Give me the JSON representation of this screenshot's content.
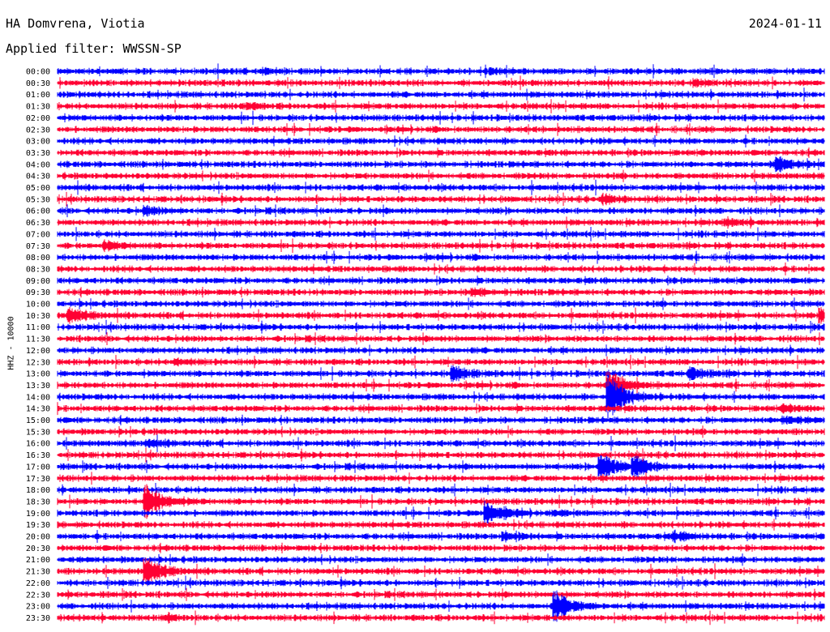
{
  "header": {
    "station": "HA Domvrena, Viotia",
    "date": "2024-01-11",
    "filter": "Applied filter: WWSSN-SP"
  },
  "chart_data": {
    "type": "line",
    "title": "HA Domvrena, Viotia",
    "ylabel": "HHZ - 10000",
    "trace_colors": [
      "#0000ff",
      "#ff0033"
    ],
    "row_labels": [
      "00:00",
      "00:30",
      "01:00",
      "01:30",
      "02:00",
      "02:30",
      "03:00",
      "03:30",
      "04:00",
      "04:30",
      "05:00",
      "05:30",
      "06:00",
      "06:30",
      "07:00",
      "07:30",
      "08:00",
      "08:30",
      "09:00",
      "09:30",
      "10:00",
      "10:30",
      "11:00",
      "11:30",
      "12:00",
      "12:30",
      "13:00",
      "13:30",
      "14:00",
      "14:30",
      "15:00",
      "15:30",
      "16:00",
      "16:30",
      "17:00",
      "17:30",
      "18:00",
      "18:30",
      "19:00",
      "19:30",
      "20:00",
      "20:30",
      "21:00",
      "21:30",
      "22:00",
      "22:30",
      "23:00",
      "23:30"
    ],
    "row_duration_minutes": 30,
    "events": [
      {
        "row": 0,
        "minute": 8.0,
        "amplitude": 0.4
      },
      {
        "row": 0,
        "minute": 17.0,
        "amplitude": 0.4
      },
      {
        "row": 1,
        "minute": 25.0,
        "amplitude": 0.4
      },
      {
        "row": 3,
        "minute": 7.3,
        "amplitude": 0.4
      },
      {
        "row": 8,
        "minute": 28.2,
        "amplitude": 1.2
      },
      {
        "row": 11,
        "minute": 21.4,
        "amplitude": 0.6
      },
      {
        "row": 12,
        "minute": 3.5,
        "amplitude": 0.6
      },
      {
        "row": 13,
        "minute": 26.2,
        "amplitude": 0.5
      },
      {
        "row": 15,
        "minute": 1.9,
        "amplitude": 0.6
      },
      {
        "row": 19,
        "minute": 16.3,
        "amplitude": 0.5
      },
      {
        "row": 21,
        "minute": 0.5,
        "amplitude": 1.1
      },
      {
        "row": 21,
        "minute": 29.9,
        "amplitude": 1.0
      },
      {
        "row": 25,
        "minute": 4.7,
        "amplitude": 0.4
      },
      {
        "row": 26,
        "minute": 15.5,
        "amplitude": 1.2
      },
      {
        "row": 26,
        "minute": 24.8,
        "amplitude": 0.9
      },
      {
        "row": 27,
        "minute": 21.6,
        "amplitude": 2.5
      },
      {
        "row": 28,
        "minute": 21.6,
        "amplitude": 4.0
      },
      {
        "row": 29,
        "minute": 28.5,
        "amplitude": 0.5
      },
      {
        "row": 30,
        "minute": 28.5,
        "amplitude": 0.6
      },
      {
        "row": 32,
        "minute": 3.6,
        "amplitude": 0.5
      },
      {
        "row": 34,
        "minute": 21.3,
        "amplitude": 2.2
      },
      {
        "row": 34,
        "minute": 22.6,
        "amplitude": 1.8
      },
      {
        "row": 37,
        "minute": 3.5,
        "amplitude": 3.0
      },
      {
        "row": 38,
        "minute": 16.8,
        "amplitude": 2.0
      },
      {
        "row": 38,
        "minute": 19.8,
        "amplitude": 0.4
      },
      {
        "row": 40,
        "minute": 17.5,
        "amplitude": 0.7
      },
      {
        "row": 40,
        "minute": 24.2,
        "amplitude": 0.7
      },
      {
        "row": 43,
        "minute": 3.5,
        "amplitude": 2.2
      },
      {
        "row": 46,
        "minute": 19.5,
        "amplitude": 2.5
      },
      {
        "row": 47,
        "minute": 4.2,
        "amplitude": 0.4
      }
    ]
  }
}
